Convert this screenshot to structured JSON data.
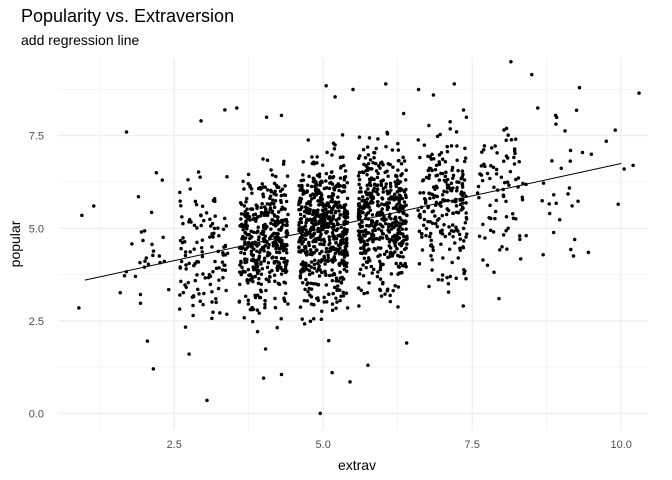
{
  "chart_data": {
    "type": "scatter",
    "title": "Popularity vs. Extraversion",
    "subtitle": "add regression line",
    "xlabel": "extrav",
    "ylabel": "popular",
    "xlim": [
      0.55,
      10.45
    ],
    "ylim": [
      -0.45,
      9.6
    ],
    "xticks": [
      2.5,
      5.0,
      7.5,
      10.0
    ],
    "xtick_labels": [
      "2.5",
      "5.0",
      "7.5",
      "10.0"
    ],
    "yticks": [
      0.0,
      2.5,
      5.0,
      7.5
    ],
    "ytick_labels": [
      "0.0",
      "2.5",
      "5.0",
      "7.5"
    ],
    "grid": true,
    "legend": "none",
    "colors": {
      "points": "#000000",
      "line": "#000000",
      "grid": "#ebebeb"
    },
    "regression_line": {
      "x": [
        1.0,
        10.0
      ],
      "y": [
        3.6,
        6.75
      ]
    },
    "points_summary": {
      "n_points": 2000,
      "note_free": true,
      "clusters": [
        {
          "center": 1,
          "count": 8
        },
        {
          "center": 2,
          "count": 20
        },
        {
          "center": 3,
          "count": 120
        },
        {
          "center": 4,
          "count": 420
        },
        {
          "center": 5,
          "count": 620
        },
        {
          "center": 6,
          "count": 480
        },
        {
          "center": 7,
          "count": 220
        },
        {
          "center": 8,
          "count": 80
        },
        {
          "center": 9,
          "count": 22
        },
        {
          "center": 10,
          "count": 10
        }
      ]
    },
    "points": [
      [
        0.9,
        2.85
      ],
      [
        0.95,
        5.35
      ],
      [
        1.15,
        5.6
      ],
      [
        1.7,
        7.6
      ],
      [
        1.95,
        4.9
      ],
      [
        2.0,
        3.95
      ],
      [
        2.05,
        1.95
      ],
      [
        2.15,
        1.2
      ],
      [
        2.2,
        6.5
      ],
      [
        2.25,
        4.25
      ],
      [
        1.9,
        5.85
      ],
      [
        1.85,
        3.7
      ],
      [
        2.3,
        6.3
      ],
      [
        3.05,
        0.35
      ],
      [
        2.95,
        7.9
      ],
      [
        3.35,
        8.2
      ],
      [
        3.55,
        8.25
      ],
      [
        3.25,
        3.6
      ],
      [
        2.75,
        1.6
      ],
      [
        4.0,
        0.95
      ],
      [
        4.3,
        1.05
      ],
      [
        4.05,
        8.0
      ],
      [
        4.3,
        8.05
      ],
      [
        4.95,
        0.0
      ],
      [
        5.15,
        1.1
      ],
      [
        5.45,
        0.85
      ],
      [
        5.05,
        8.85
      ],
      [
        5.5,
        8.75
      ],
      [
        5.2,
        8.55
      ],
      [
        5.75,
        1.3
      ],
      [
        6.05,
        8.9
      ],
      [
        6.4,
        1.9
      ],
      [
        6.35,
        8.1
      ],
      [
        6.6,
        8.75
      ],
      [
        6.85,
        8.6
      ],
      [
        7.2,
        8.9
      ],
      [
        7.1,
        3.5
      ],
      [
        7.35,
        2.9
      ],
      [
        7.95,
        3.1
      ],
      [
        8.15,
        9.5
      ],
      [
        8.5,
        9.15
      ],
      [
        8.3,
        4.7
      ],
      [
        8.6,
        8.25
      ],
      [
        8.0,
        4.5
      ],
      [
        8.8,
        5.4
      ],
      [
        8.9,
        8.05
      ],
      [
        9.3,
        8.8
      ],
      [
        9.15,
        7.1
      ],
      [
        9.2,
        4.25
      ],
      [
        9.45,
        4.35
      ],
      [
        9.5,
        7.0
      ],
      [
        9.9,
        7.65
      ],
      [
        9.95,
        5.65
      ],
      [
        9.75,
        7.35
      ],
      [
        10.05,
        6.6
      ],
      [
        10.3,
        8.65
      ],
      [
        10.2,
        6.7
      ]
    ]
  }
}
